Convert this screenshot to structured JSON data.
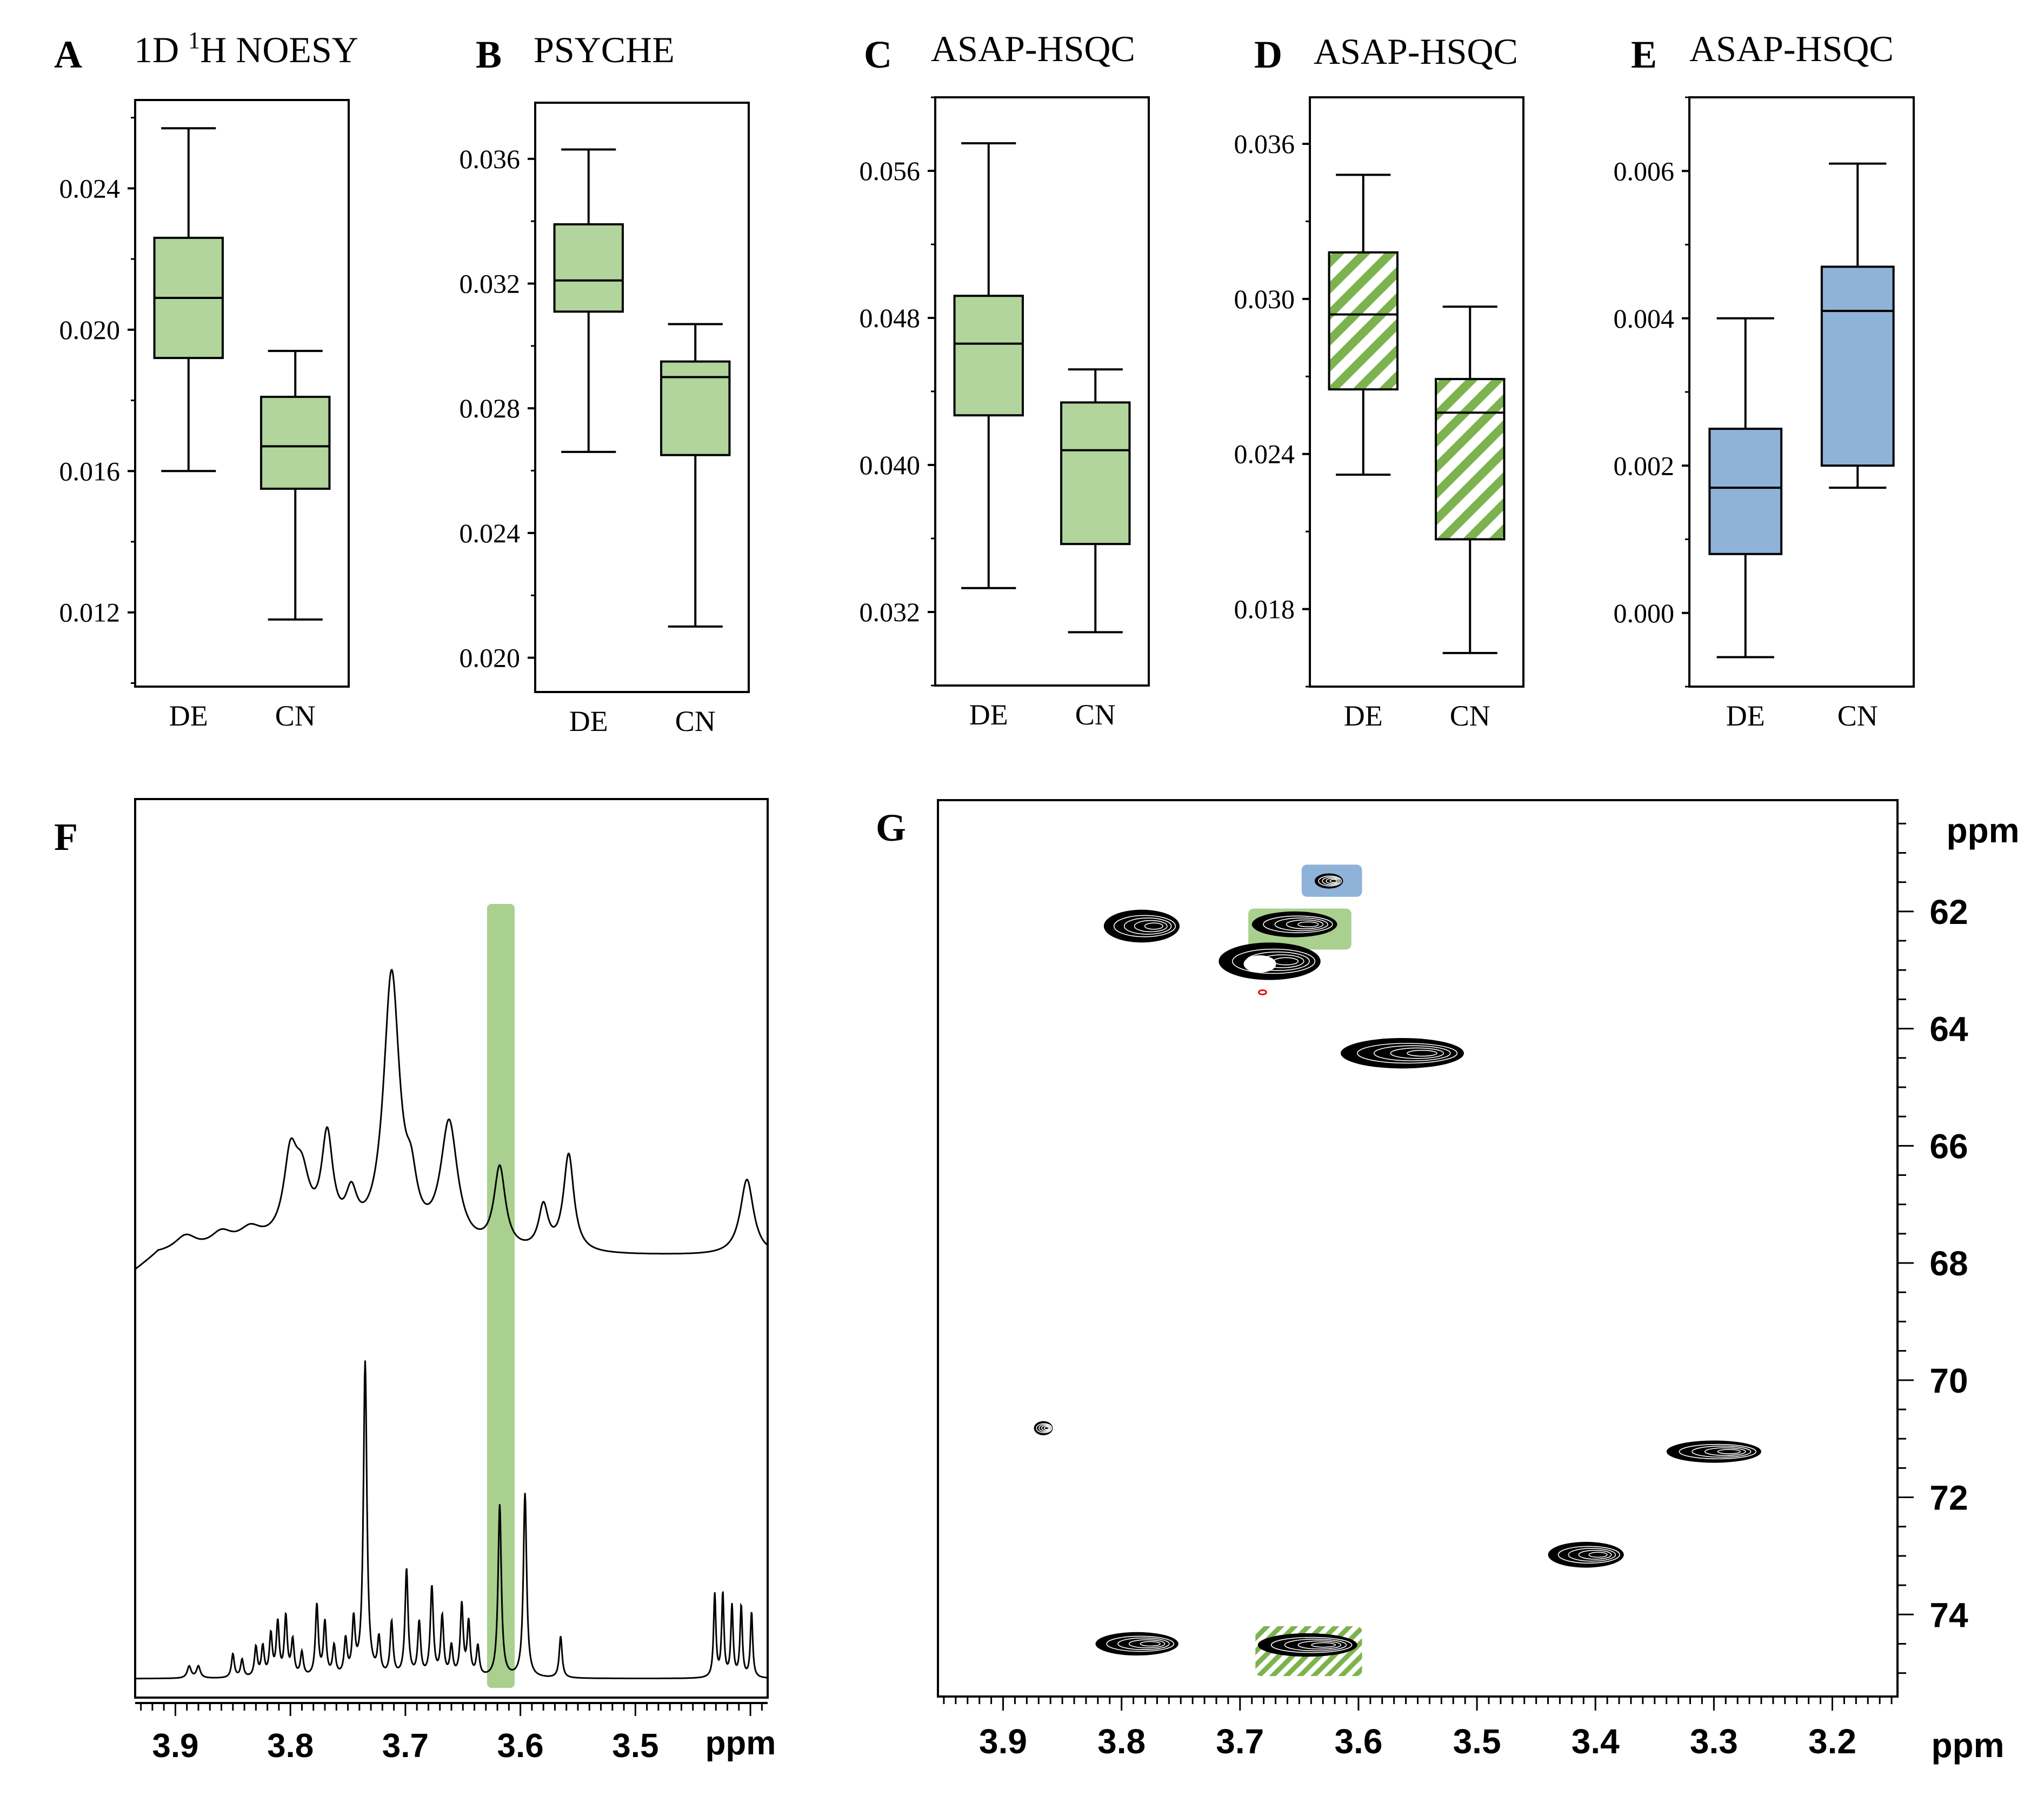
{
  "figure": {
    "box_fill_green": "#b1d59d",
    "box_fill_blue": "#8fb2d9",
    "hatch_green": "#7cb34f",
    "highlight_green": "#a9d08e",
    "highlight_blue": "#8fb2d9",
    "ink": "#000000",
    "contour_red": "#e01010"
  },
  "chart_data": [
    {
      "id": "A",
      "type": "box",
      "letter": "A",
      "title_main": "1D ",
      "title_sup": "1",
      "title_rest": "H NOESY",
      "ylim": [
        0.0099,
        0.0265
      ],
      "ticks": [
        0.012,
        0.016,
        0.02,
        0.024
      ],
      "tick_labels": [
        "0.012",
        "0.016",
        "0.020",
        "0.024"
      ],
      "minor_ticks": [
        0.01,
        0.014,
        0.018,
        0.022,
        0.026
      ],
      "fill": "solid-green",
      "groups": [
        {
          "name": "DE",
          "whisker_low": 0.016,
          "q1": 0.0192,
          "median": 0.0209,
          "q3": 0.0226,
          "whisker_high": 0.0257
        },
        {
          "name": "CN",
          "whisker_low": 0.0118,
          "q1": 0.0155,
          "median": 0.0167,
          "q3": 0.0181,
          "whisker_high": 0.0194
        }
      ]
    },
    {
      "id": "B",
      "type": "box",
      "letter": "B",
      "title_main": "PSYCHE",
      "title_sup": "",
      "title_rest": "",
      "ylim": [
        0.0189,
        0.0378
      ],
      "ticks": [
        0.02,
        0.024,
        0.028,
        0.032,
        0.036
      ],
      "tick_labels": [
        "0.020",
        "0.024",
        "0.028",
        "0.032",
        "0.036"
      ],
      "minor_ticks": [
        0.022,
        0.026,
        0.03,
        0.034
      ],
      "fill": "solid-green",
      "groups": [
        {
          "name": "DE",
          "whisker_low": 0.0266,
          "q1": 0.0311,
          "median": 0.0321,
          "q3": 0.0339,
          "whisker_high": 0.0363
        },
        {
          "name": "CN",
          "whisker_low": 0.021,
          "q1": 0.0265,
          "median": 0.029,
          "q3": 0.0295,
          "whisker_high": 0.0307
        }
      ]
    },
    {
      "id": "C",
      "type": "box",
      "letter": "C",
      "title_main": "ASAP-HSQC",
      "title_sup": "",
      "title_rest": "",
      "ylim": [
        0.028,
        0.06
      ],
      "ticks": [
        0.032,
        0.04,
        0.048,
        0.056
      ],
      "tick_labels": [
        "0.032",
        "0.040",
        "0.048",
        "0.056"
      ],
      "minor_ticks": [
        0.028,
        0.036,
        0.044,
        0.052,
        0.06
      ],
      "fill": "solid-green",
      "groups": [
        {
          "name": "DE",
          "whisker_low": 0.0333,
          "q1": 0.0427,
          "median": 0.0466,
          "q3": 0.0492,
          "whisker_high": 0.0575
        },
        {
          "name": "CN",
          "whisker_low": 0.0309,
          "q1": 0.0357,
          "median": 0.0408,
          "q3": 0.0434,
          "whisker_high": 0.0452
        }
      ]
    },
    {
      "id": "D",
      "type": "box",
      "letter": "D",
      "title_main": "ASAP-HSQC",
      "title_sup": "",
      "title_rest": "",
      "ylim": [
        0.015,
        0.0378
      ],
      "ticks": [
        0.018,
        0.024,
        0.03,
        0.036
      ],
      "tick_labels": [
        "0.018",
        "0.024",
        "0.030",
        "0.036"
      ],
      "minor_ticks": [
        0.015,
        0.021,
        0.027,
        0.033
      ],
      "fill": "hatched-green",
      "groups": [
        {
          "name": "DE",
          "whisker_low": 0.0232,
          "q1": 0.0265,
          "median": 0.0294,
          "q3": 0.0318,
          "whisker_high": 0.0348
        },
        {
          "name": "CN",
          "whisker_low": 0.0163,
          "q1": 0.0207,
          "median": 0.0256,
          "q3": 0.0269,
          "whisker_high": 0.0297
        }
      ]
    },
    {
      "id": "E",
      "type": "box",
      "letter": "E",
      "title_main": "ASAP-HSQC",
      "title_sup": "",
      "title_rest": "",
      "ylim": [
        -0.001,
        0.007
      ],
      "ticks": [
        0.0,
        0.002,
        0.004,
        0.006
      ],
      "tick_labels": [
        "0.000",
        "0.002",
        "0.004",
        "0.006"
      ],
      "minor_ticks": [
        -0.001,
        0.001,
        0.003,
        0.005,
        0.007
      ],
      "fill": "solid-blue",
      "groups": [
        {
          "name": "DE",
          "whisker_low": -0.0006,
          "q1": 0.0008,
          "median": 0.0017,
          "q3": 0.0025,
          "whisker_high": 0.004
        },
        {
          "name": "CN",
          "whisker_low": 0.0017,
          "q1": 0.002,
          "median": 0.0041,
          "q3": 0.0047,
          "whisker_high": 0.0061
        }
      ]
    },
    {
      "id": "F",
      "type": "line",
      "letter": "F",
      "xlabel": "ppm",
      "xlim": [
        3.935,
        3.385
      ],
      "x_ticks": [
        3.9,
        3.8,
        3.7,
        3.6,
        3.5
      ],
      "x_tick_labels": [
        "3.9",
        "3.8",
        "3.7",
        "3.6",
        "3.5"
      ],
      "highlight_ppm": [
        3.629,
        3.605
      ],
      "series": [
        {
          "name": "1D 1H NOESY (top trace)",
          "baseline": 0.0,
          "peaks": [
            {
              "x": 3.891,
              "h": 0.03,
              "w": 0.012
            },
            {
              "x": 3.86,
              "h": 0.03,
              "w": 0.012
            },
            {
              "x": 3.835,
              "h": 0.03,
              "w": 0.012
            },
            {
              "x": 3.8,
              "h": 0.14,
              "w": 0.007
            },
            {
              "x": 3.79,
              "h": 0.1,
              "w": 0.008
            },
            {
              "x": 3.768,
              "h": 0.18,
              "w": 0.006
            },
            {
              "x": 3.747,
              "h": 0.07,
              "w": 0.006
            },
            {
              "x": 3.712,
              "h": 0.5,
              "w": 0.0085
            },
            {
              "x": 3.695,
              "h": 0.08,
              "w": 0.006
            },
            {
              "x": 3.662,
              "h": 0.23,
              "w": 0.009
            },
            {
              "x": 3.618,
              "h": 0.15,
              "w": 0.006
            },
            {
              "x": 3.58,
              "h": 0.08,
              "w": 0.005
            },
            {
              "x": 3.558,
              "h": 0.18,
              "w": 0.0055
            },
            {
              "x": 3.403,
              "h": 0.14,
              "w": 0.007
            }
          ]
        },
        {
          "name": "PSYCHE (bottom trace)",
          "baseline": 0.0,
          "peaks": [
            {
              "x": 3.888,
              "h": 0.02,
              "w": 0.002
            },
            {
              "x": 3.88,
              "h": 0.02,
              "w": 0.002
            },
            {
              "x": 3.85,
              "h": 0.04,
              "w": 0.0015
            },
            {
              "x": 3.842,
              "h": 0.03,
              "w": 0.0015
            },
            {
              "x": 3.83,
              "h": 0.05,
              "w": 0.0015
            },
            {
              "x": 3.824,
              "h": 0.05,
              "w": 0.0015
            },
            {
              "x": 3.817,
              "h": 0.07,
              "w": 0.0015
            },
            {
              "x": 3.811,
              "h": 0.09,
              "w": 0.0015
            },
            {
              "x": 3.804,
              "h": 0.1,
              "w": 0.0015
            },
            {
              "x": 3.798,
              "h": 0.06,
              "w": 0.0015
            },
            {
              "x": 3.79,
              "h": 0.04,
              "w": 0.0015
            },
            {
              "x": 3.777,
              "h": 0.12,
              "w": 0.0015
            },
            {
              "x": 3.77,
              "h": 0.09,
              "w": 0.0015
            },
            {
              "x": 3.762,
              "h": 0.05,
              "w": 0.0015
            },
            {
              "x": 3.752,
              "h": 0.06,
              "w": 0.0015
            },
            {
              "x": 3.745,
              "h": 0.09,
              "w": 0.0015
            },
            {
              "x": 3.735,
              "h": 0.53,
              "w": 0.0018
            },
            {
              "x": 3.723,
              "h": 0.06,
              "w": 0.0015
            },
            {
              "x": 3.712,
              "h": 0.09,
              "w": 0.0015
            },
            {
              "x": 3.699,
              "h": 0.18,
              "w": 0.0016
            },
            {
              "x": 3.688,
              "h": 0.09,
              "w": 0.0015
            },
            {
              "x": 3.677,
              "h": 0.15,
              "w": 0.0016
            },
            {
              "x": 3.668,
              "h": 0.1,
              "w": 0.0015
            },
            {
              "x": 3.66,
              "h": 0.05,
              "w": 0.0015
            },
            {
              "x": 3.651,
              "h": 0.12,
              "w": 0.0015
            },
            {
              "x": 3.645,
              "h": 0.09,
              "w": 0.0015
            },
            {
              "x": 3.637,
              "h": 0.05,
              "w": 0.0015
            },
            {
              "x": 3.618,
              "h": 0.29,
              "w": 0.0017
            },
            {
              "x": 3.596,
              "h": 0.31,
              "w": 0.0017
            },
            {
              "x": 3.565,
              "h": 0.07,
              "w": 0.0015
            },
            {
              "x": 3.431,
              "h": 0.14,
              "w": 0.0012
            },
            {
              "x": 3.424,
              "h": 0.14,
              "w": 0.0012
            },
            {
              "x": 3.416,
              "h": 0.12,
              "w": 0.0012
            },
            {
              "x": 3.408,
              "h": 0.12,
              "w": 0.0012
            },
            {
              "x": 3.399,
              "h": 0.11,
              "w": 0.0012
            }
          ]
        }
      ]
    },
    {
      "id": "G",
      "type": "contour",
      "letter": "G",
      "xlabel": "ppm",
      "ylabel": "ppm",
      "xlim": [
        3.955,
        3.145
      ],
      "ylim": [
        60.1,
        75.4
      ],
      "x_ticks": [
        3.9,
        3.8,
        3.7,
        3.6,
        3.5,
        3.4,
        3.3,
        3.2
      ],
      "x_tick_labels": [
        "3.9",
        "3.8",
        "3.7",
        "3.6",
        "3.5",
        "3.4",
        "3.3",
        "3.2"
      ],
      "y_ticks": [
        62,
        64,
        66,
        68,
        70,
        72,
        74
      ],
      "y_tick_labels": [
        "62",
        "64",
        "66",
        "68",
        "70",
        "72",
        "74"
      ],
      "highlights": [
        {
          "kind": "blue",
          "x_range": [
            3.648,
            3.597
          ],
          "y_range": [
            61.2,
            61.75
          ]
        },
        {
          "kind": "green",
          "x_range": [
            3.693,
            3.606
          ],
          "y_range": [
            61.95,
            62.65
          ]
        },
        {
          "kind": "hatched-green",
          "x_range": [
            3.687,
            3.597
          ],
          "y_range": [
            74.2,
            75.05
          ]
        }
      ],
      "peaks": [
        {
          "x": 3.625,
          "y": 61.48,
          "rx": 0.012,
          "ry": 0.13
        },
        {
          "x": 3.783,
          "y": 62.25,
          "rx": 0.032,
          "ry": 0.28
        },
        {
          "x": 3.654,
          "y": 62.22,
          "rx": 0.036,
          "ry": 0.22
        },
        {
          "x": 3.675,
          "y": 62.85,
          "rx": 0.043,
          "ry": 0.32
        },
        {
          "x": 3.563,
          "y": 64.42,
          "rx": 0.052,
          "ry": 0.26
        },
        {
          "x": 3.866,
          "y": 70.82,
          "rx": 0.008,
          "ry": 0.12
        },
        {
          "x": 3.3,
          "y": 71.22,
          "rx": 0.04,
          "ry": 0.19
        },
        {
          "x": 3.408,
          "y": 72.98,
          "rx": 0.032,
          "ry": 0.22
        },
        {
          "x": 3.787,
          "y": 74.5,
          "rx": 0.035,
          "ry": 0.2
        },
        {
          "x": 3.643,
          "y": 74.52,
          "rx": 0.042,
          "ry": 0.2
        }
      ],
      "minor_peaks": [
        {
          "x": 3.681,
          "y": 63.38,
          "color": "red"
        }
      ]
    }
  ]
}
